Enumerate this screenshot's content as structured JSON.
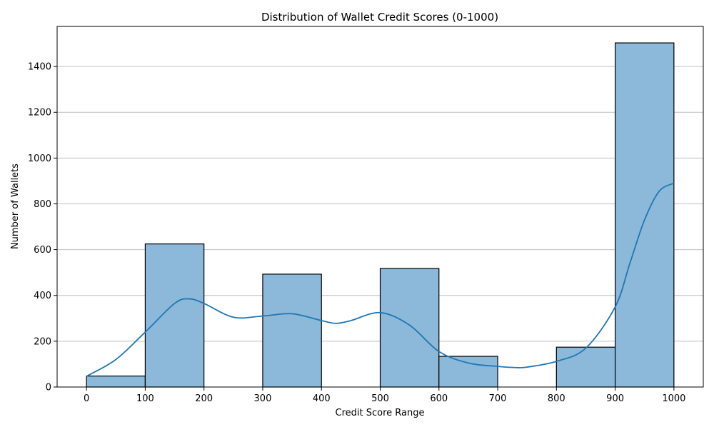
{
  "chart_data": {
    "type": "bar",
    "title": "Distribution of Wallet Credit Scores (0-1000)",
    "xlabel": "Credit Score Range",
    "ylabel": "Number of Wallets",
    "xlim": [
      -50,
      1050
    ],
    "ylim": [
      0,
      1575
    ],
    "xticks": [
      "0",
      "100",
      "200",
      "300",
      "400",
      "500",
      "600",
      "700",
      "800",
      "900",
      "1000"
    ],
    "yticks": [
      "0",
      "200",
      "400",
      "600",
      "800",
      "1000",
      "1200",
      "1400"
    ],
    "bins": [
      {
        "start": 0,
        "end": 100,
        "count": 48
      },
      {
        "start": 100,
        "end": 200,
        "count": 625
      },
      {
        "start": 200,
        "end": 300,
        "count": 0
      },
      {
        "start": 300,
        "end": 400,
        "count": 493
      },
      {
        "start": 400,
        "end": 500,
        "count": 0
      },
      {
        "start": 500,
        "end": 600,
        "count": 518
      },
      {
        "start": 600,
        "end": 700,
        "count": 134
      },
      {
        "start": 700,
        "end": 800,
        "count": 0
      },
      {
        "start": 800,
        "end": 900,
        "count": 174
      },
      {
        "start": 900,
        "end": 1000,
        "count": 1503
      }
    ],
    "kde": {
      "x": [
        0,
        50,
        100,
        150,
        175,
        200,
        250,
        300,
        350,
        400,
        425,
        450,
        500,
        550,
        600,
        650,
        700,
        730,
        750,
        800,
        850,
        900,
        925,
        950,
        975,
        1000
      ],
      "y": [
        47,
        120,
        240,
        365,
        385,
        365,
        305,
        310,
        320,
        290,
        278,
        290,
        325,
        270,
        155,
        105,
        90,
        85,
        87,
        112,
        170,
        350,
        540,
        730,
        855,
        890
      ]
    },
    "bar_color": "#8cb8d9",
    "bar_edge_color": "#000000",
    "kde_color": "#1f77b4",
    "grid": "y-axis",
    "legend": "none"
  }
}
